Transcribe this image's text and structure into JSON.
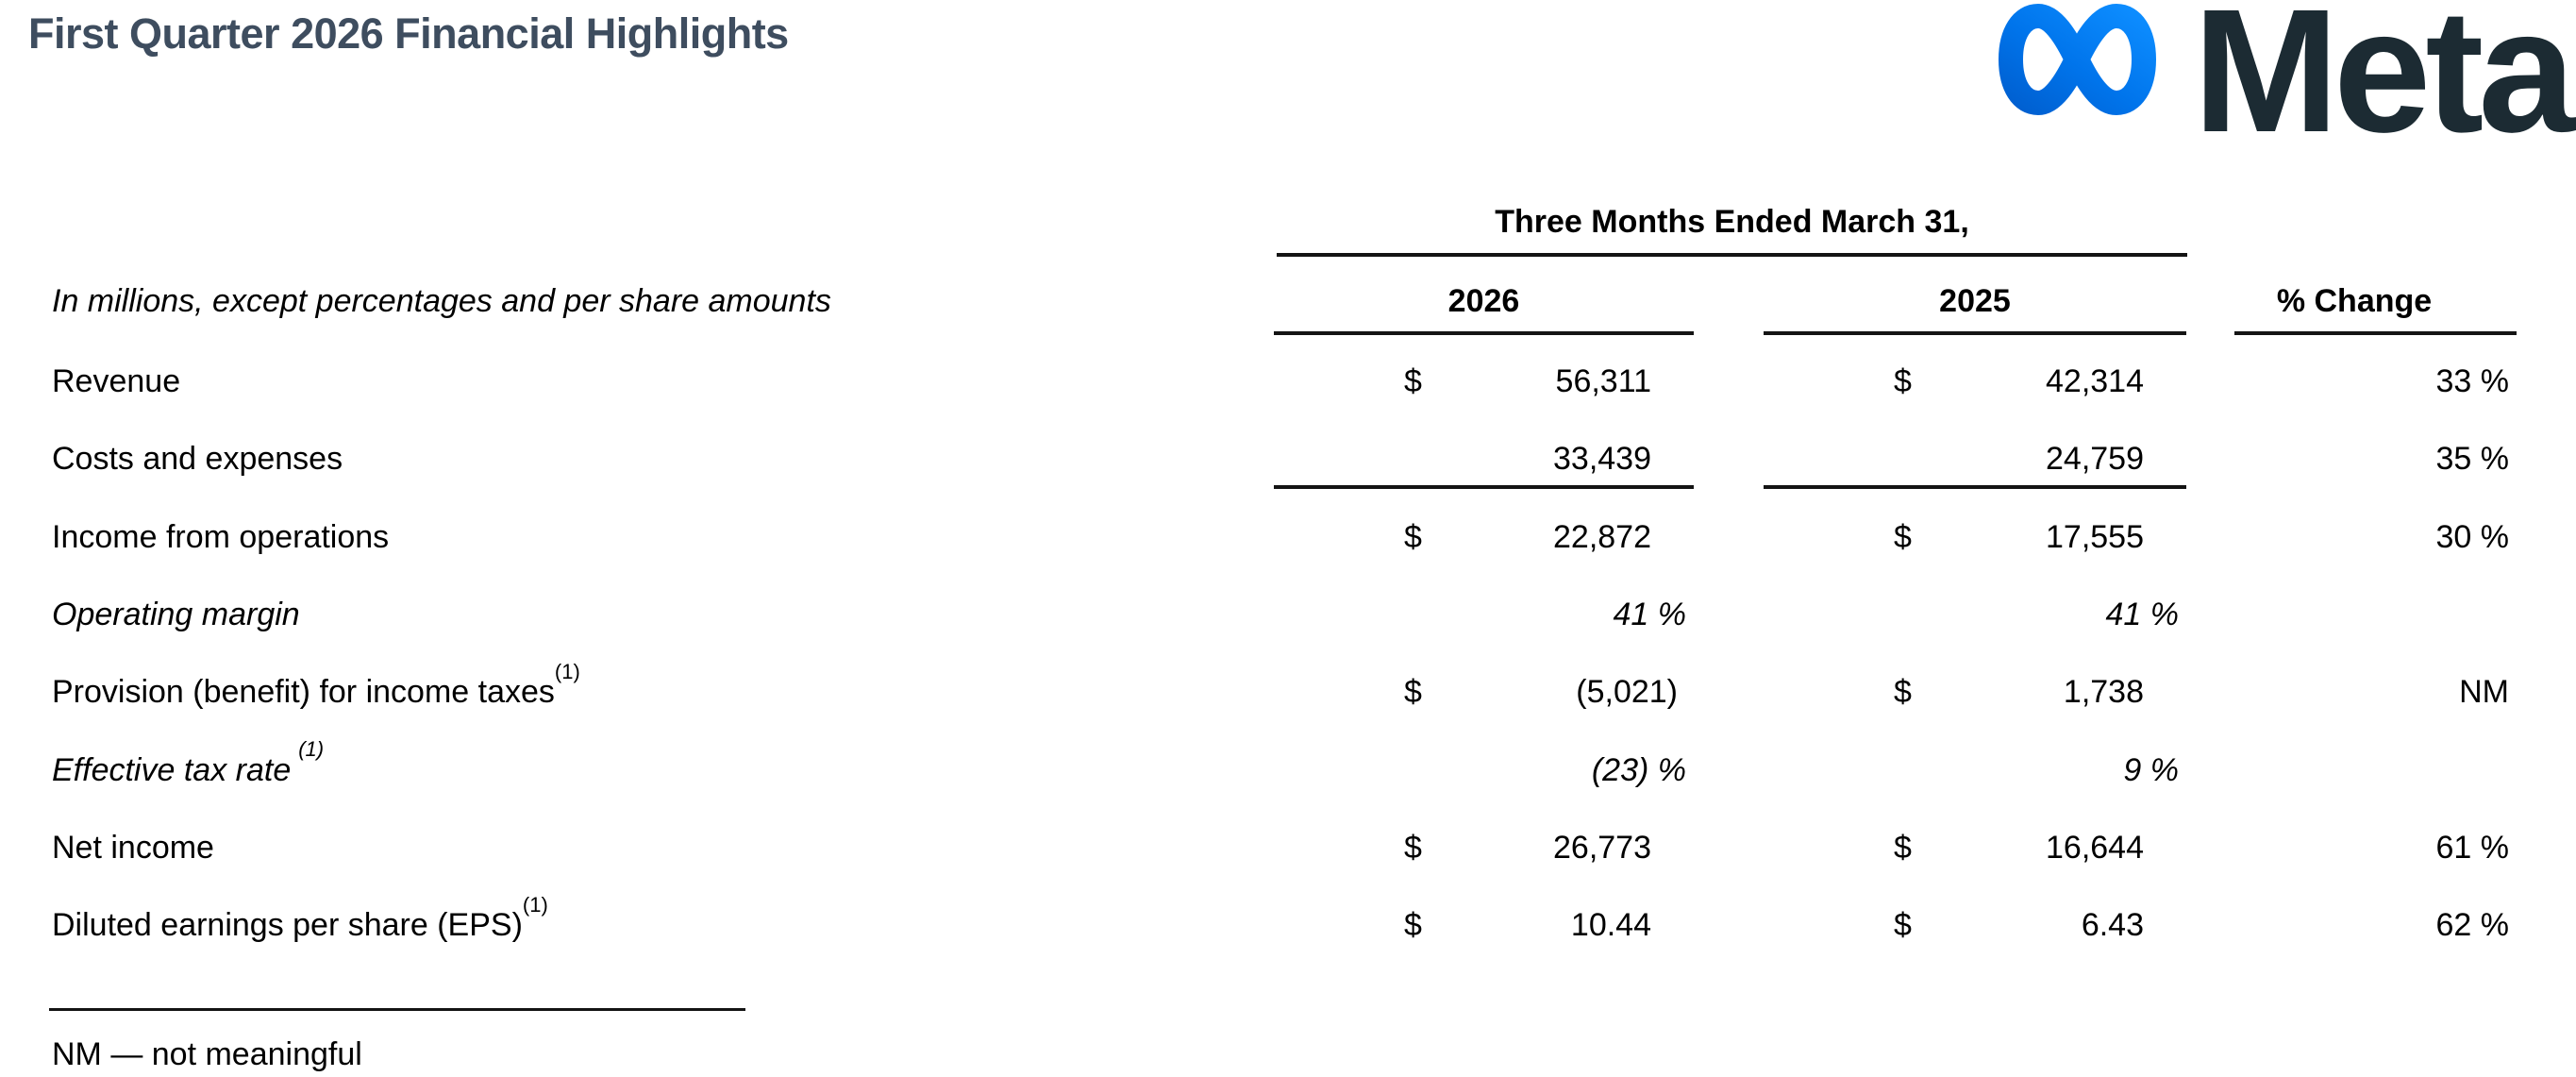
{
  "header": {
    "title": "First Quarter 2026 Financial Highlights",
    "title_color": "#3E4D5F",
    "logo": {
      "wordmark": "Meta",
      "symbol_icon": "meta-infinity-icon",
      "symbol_gradient": [
        "#0060D1",
        "#0074EB",
        "#0D8DFF"
      ],
      "wordmark_color": "#1C2B33"
    }
  },
  "table": {
    "span_header": "Three Months Ended March 31,",
    "note_header": "In millions, except percentages and per share amounts",
    "columns": {
      "col2026": "2026",
      "col2025": "2025",
      "change": "% Change"
    },
    "rows": [
      {
        "label": "Revenue",
        "italic": false,
        "sup": "",
        "y2026": {
          "dollar": true,
          "value": "56,311"
        },
        "y2025": {
          "dollar": true,
          "value": "42,314"
        },
        "change": "33 %"
      },
      {
        "label": "Costs and expenses",
        "italic": false,
        "sup": "",
        "y2026": {
          "dollar": false,
          "value": "33,439"
        },
        "y2025": {
          "dollar": false,
          "value": "24,759"
        },
        "change": "35 %"
      },
      {
        "label": "Income from operations",
        "italic": false,
        "sup": "",
        "y2026": {
          "dollar": true,
          "value": "22,872"
        },
        "y2025": {
          "dollar": true,
          "value": "17,555"
        },
        "change": "30 %"
      },
      {
        "label": "Operating margin",
        "italic": true,
        "sup": "",
        "y2026": {
          "dollar": false,
          "value": "41 %"
        },
        "y2025": {
          "dollar": false,
          "value": "41 %"
        },
        "change": ""
      },
      {
        "label": "Provision (benefit) for income taxes",
        "italic": false,
        "sup": "(1)",
        "y2026": {
          "dollar": true,
          "value": "(5,021)"
        },
        "y2025": {
          "dollar": true,
          "value": "1,738"
        },
        "change": "NM"
      },
      {
        "label": "Effective tax rate",
        "italic": true,
        "sup": "(1)",
        "y2026": {
          "dollar": false,
          "value": "(23) %"
        },
        "y2025": {
          "dollar": false,
          "value": "9 %"
        },
        "change": ""
      },
      {
        "label": "Net income",
        "italic": false,
        "sup": "",
        "y2026": {
          "dollar": true,
          "value": "26,773"
        },
        "y2025": {
          "dollar": true,
          "value": "16,644"
        },
        "change": "61 %"
      },
      {
        "label": "Diluted earnings per share (EPS)",
        "italic": false,
        "sup": "(1)",
        "y2026": {
          "dollar": true,
          "value": "10.44"
        },
        "y2025": {
          "dollar": true,
          "value": "6.43"
        },
        "change": "62 %"
      }
    ]
  },
  "footnote": "NM — not meaningful"
}
